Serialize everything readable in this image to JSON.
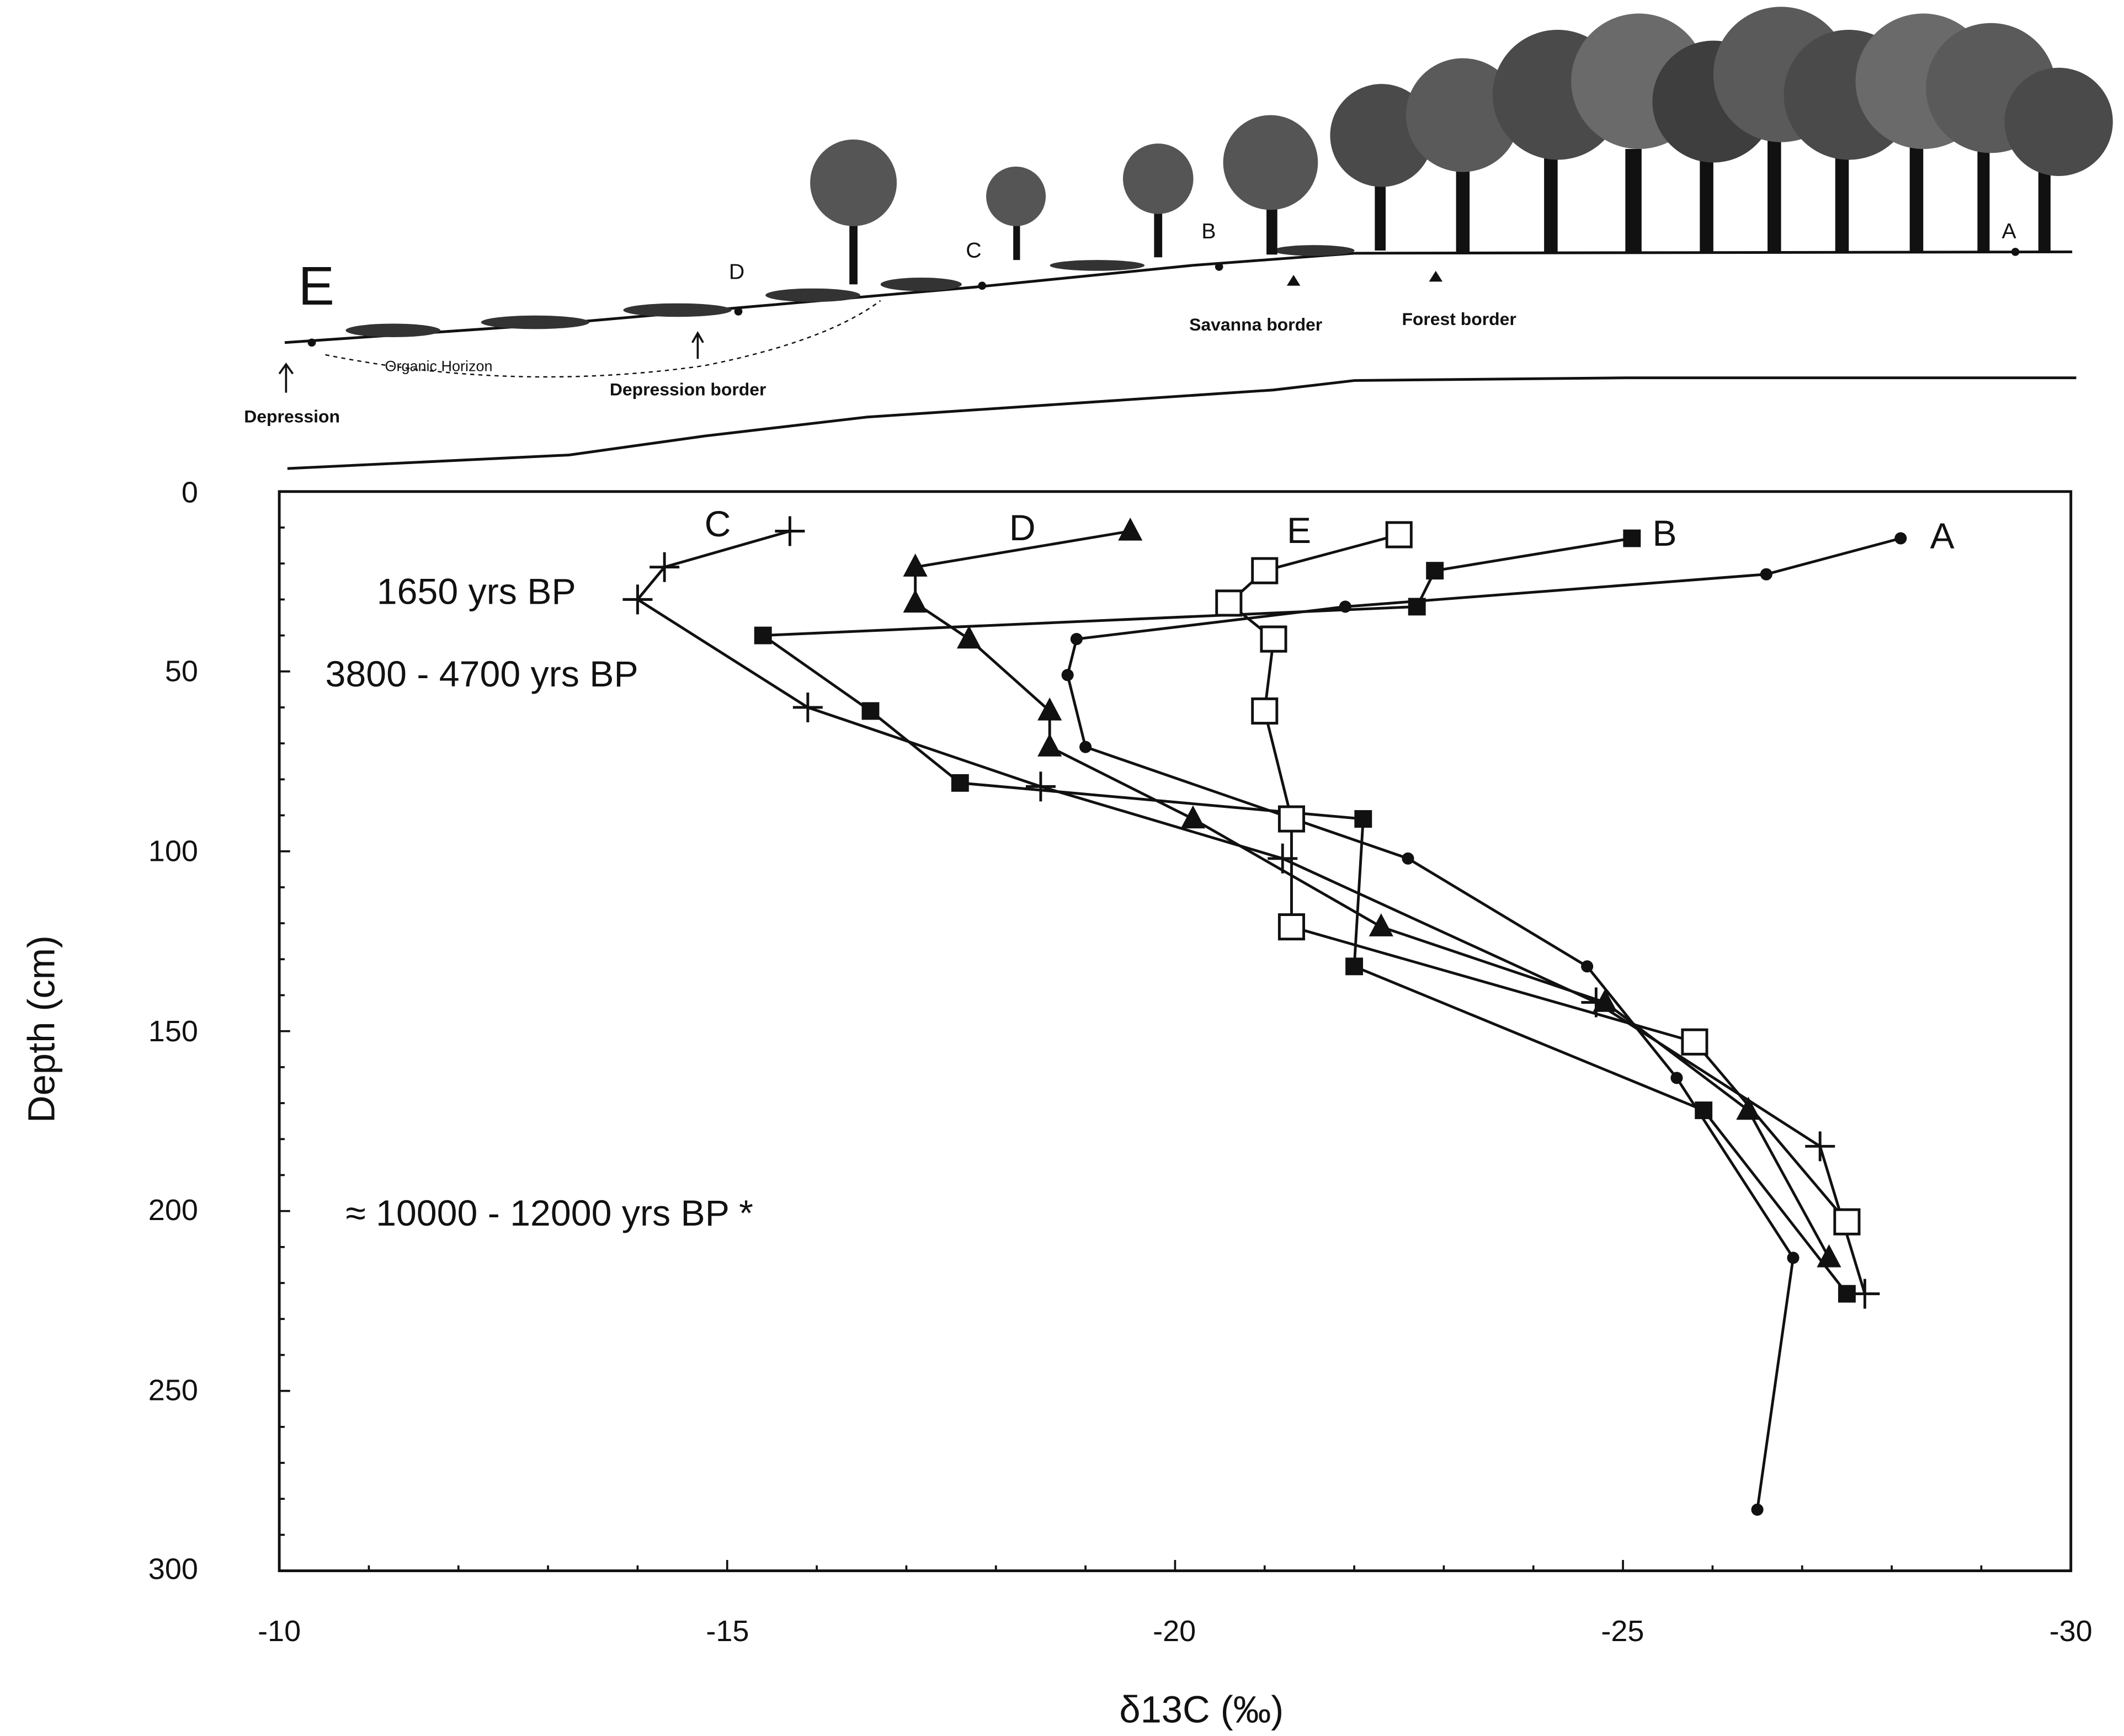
{
  "scene": {
    "site_labels": [
      "E",
      "D",
      "C",
      "B",
      "A"
    ],
    "border_labels": {
      "savanna": "Savanna border",
      "forest": "Forest border",
      "depression_border": "Depression border",
      "depression": "Depression",
      "organic_horizon": "Organic Horizon"
    }
  },
  "chart_data": {
    "type": "scatter",
    "xlabel": "δ13C (‰)",
    "ylabel": "Depth (cm)",
    "xlim": [
      -10,
      -30
    ],
    "ylim": [
      300,
      0
    ],
    "x_ticks": [
      "-10",
      "-15",
      "-20",
      "-25",
      "-30"
    ],
    "y_ticks": [
      "0",
      "50",
      "100",
      "150",
      "200",
      "250",
      "300"
    ],
    "annotations": [
      "1650 yrs BP",
      "3800 - 4700 yrs BP",
      "≈ 10000 - 12000 yrs BP *"
    ],
    "series": [
      {
        "name": "A",
        "marker": "circle",
        "x": [
          -28.1,
          -26.6,
          -21.9,
          -18.9,
          -18.8,
          -19.0,
          -22.6,
          -24.6,
          -25.6,
          -26.9,
          -26.5
        ],
        "y": [
          13,
          23,
          32,
          41,
          51,
          71,
          102,
          132,
          163,
          213,
          283
        ]
      },
      {
        "name": "B",
        "marker": "filled-square",
        "x": [
          -25.1,
          -22.9,
          -22.7,
          -15.4,
          -16.6,
          -17.6,
          -22.1,
          -22.0,
          -25.9,
          -27.5
        ],
        "y": [
          13,
          22,
          32,
          40,
          61,
          81,
          91,
          132,
          172,
          223
        ]
      },
      {
        "name": "C",
        "marker": "plus",
        "x": [
          -15.7,
          -14.3,
          -14.0,
          -15.9,
          -18.5,
          -21.2,
          -24.7,
          -27.2,
          -27.7
        ],
        "y": [
          11,
          21,
          30,
          60,
          82,
          102,
          142,
          182,
          223
        ]
      },
      {
        "name": "D",
        "marker": "filled-triangle",
        "x": [
          -19.5,
          -17.1,
          -17.1,
          -17.7,
          -18.6,
          -18.6,
          -20.2,
          -22.3,
          -24.8,
          -26.4,
          -27.3
        ],
        "y": [
          11,
          21,
          31,
          41,
          61,
          71,
          91,
          121,
          142,
          172,
          213
        ]
      },
      {
        "name": "E",
        "marker": "open-square",
        "x": [
          -22.5,
          -21.0,
          -20.6,
          -21.1,
          -21.0,
          -21.3,
          -21.3,
          -25.8,
          -27.5
        ],
        "y": [
          12,
          22,
          31,
          41,
          61,
          91,
          121,
          153,
          203
        ]
      }
    ]
  }
}
